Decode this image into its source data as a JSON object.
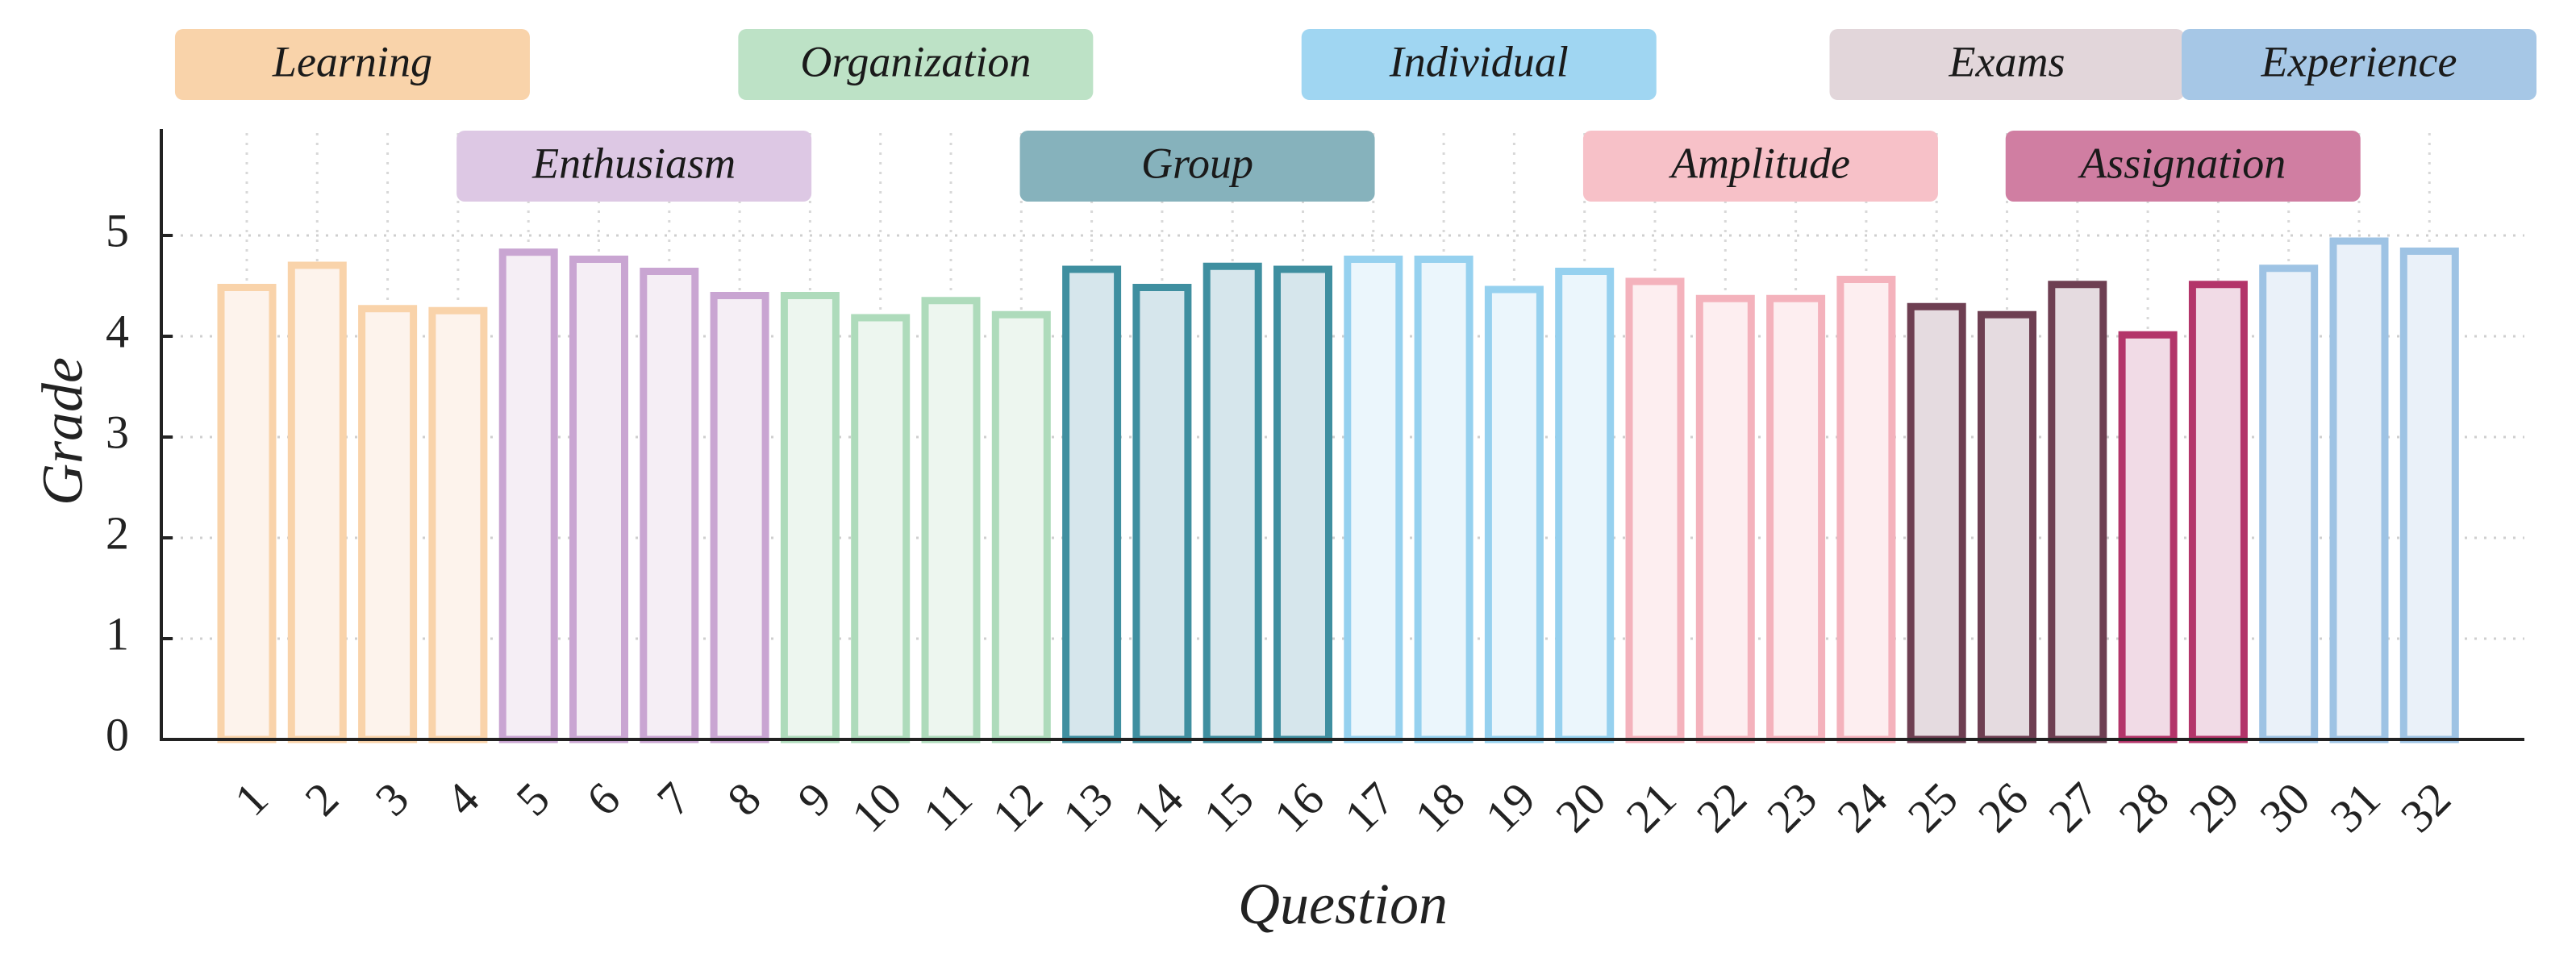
{
  "chart_data": {
    "type": "bar",
    "xlabel": "Question",
    "ylabel": "Grade",
    "ylim": [
      0,
      6
    ],
    "yticks": [
      0,
      1,
      2,
      3,
      4,
      5
    ],
    "grid": true,
    "categories": [
      "1",
      "2",
      "3",
      "4",
      "5",
      "6",
      "7",
      "8",
      "9",
      "10",
      "11",
      "12",
      "13",
      "14",
      "15",
      "16",
      "17",
      "18",
      "19",
      "20",
      "21",
      "22",
      "23",
      "24",
      "25",
      "26",
      "27",
      "28",
      "29",
      "30",
      "31",
      "32"
    ],
    "values": [
      4.52,
      4.74,
      4.31,
      4.29,
      4.87,
      4.8,
      4.68,
      4.44,
      4.44,
      4.22,
      4.39,
      4.25,
      4.7,
      4.52,
      4.73,
      4.7,
      4.8,
      4.8,
      4.5,
      4.68,
      4.58,
      4.41,
      4.41,
      4.6,
      4.33,
      4.25,
      4.55,
      4.05,
      4.55,
      4.71,
      4.98,
      4.88
    ],
    "groups": [
      {
        "name": "Learning",
        "start": 1,
        "end": 4,
        "color": "#f9d3aa",
        "fill": "#fdf3ec",
        "label_row": 0
      },
      {
        "name": "Enthusiasm",
        "start": 5,
        "end": 8,
        "color": "#c9a5d2",
        "fill": "#f5eef5",
        "label_row": 1
      },
      {
        "name": "Organization",
        "start": 9,
        "end": 12,
        "color": "#aedbbb",
        "fill": "#edf6ef",
        "label_row": 0
      },
      {
        "name": "Group",
        "start": 13,
        "end": 16,
        "color": "#3f8fa0",
        "fill": "#d6e6ec",
        "label_row": 1
      },
      {
        "name": "Individual",
        "start": 17,
        "end": 20,
        "color": "#96d1ef",
        "fill": "#ebf6fc",
        "label_row": 0
      },
      {
        "name": "Amplitude",
        "start": 21,
        "end": 24,
        "color": "#f4b2bc",
        "fill": "#fdeef0",
        "label_row": 1
      },
      {
        "name": "Exams",
        "start": 25,
        "end": 27,
        "color": "#6e3f52",
        "fill": "#e5dbe0",
        "label_row": 0
      },
      {
        "name": "Assignation",
        "start": 28,
        "end": 29,
        "color": "#b3356a",
        "fill": "#f1dbe6",
        "label_row": 1
      },
      {
        "name": "Experience",
        "start": 30,
        "end": 32,
        "color": "#9ec3e4",
        "fill": "#eaf1f9",
        "label_row": 0
      }
    ],
    "group_label_colors": {
      "Learning": "#f9d3aa",
      "Enthusiasm": "#ddc8e4",
      "Organization": "#bde2c6",
      "Group": "#86b2bc",
      "Individual": "#a0d6f2",
      "Amplitude": "#f7c1c8",
      "Exams": "#e2d6da",
      "Assignation": "#d07ea2",
      "Experience": "#a6c7e6"
    }
  }
}
